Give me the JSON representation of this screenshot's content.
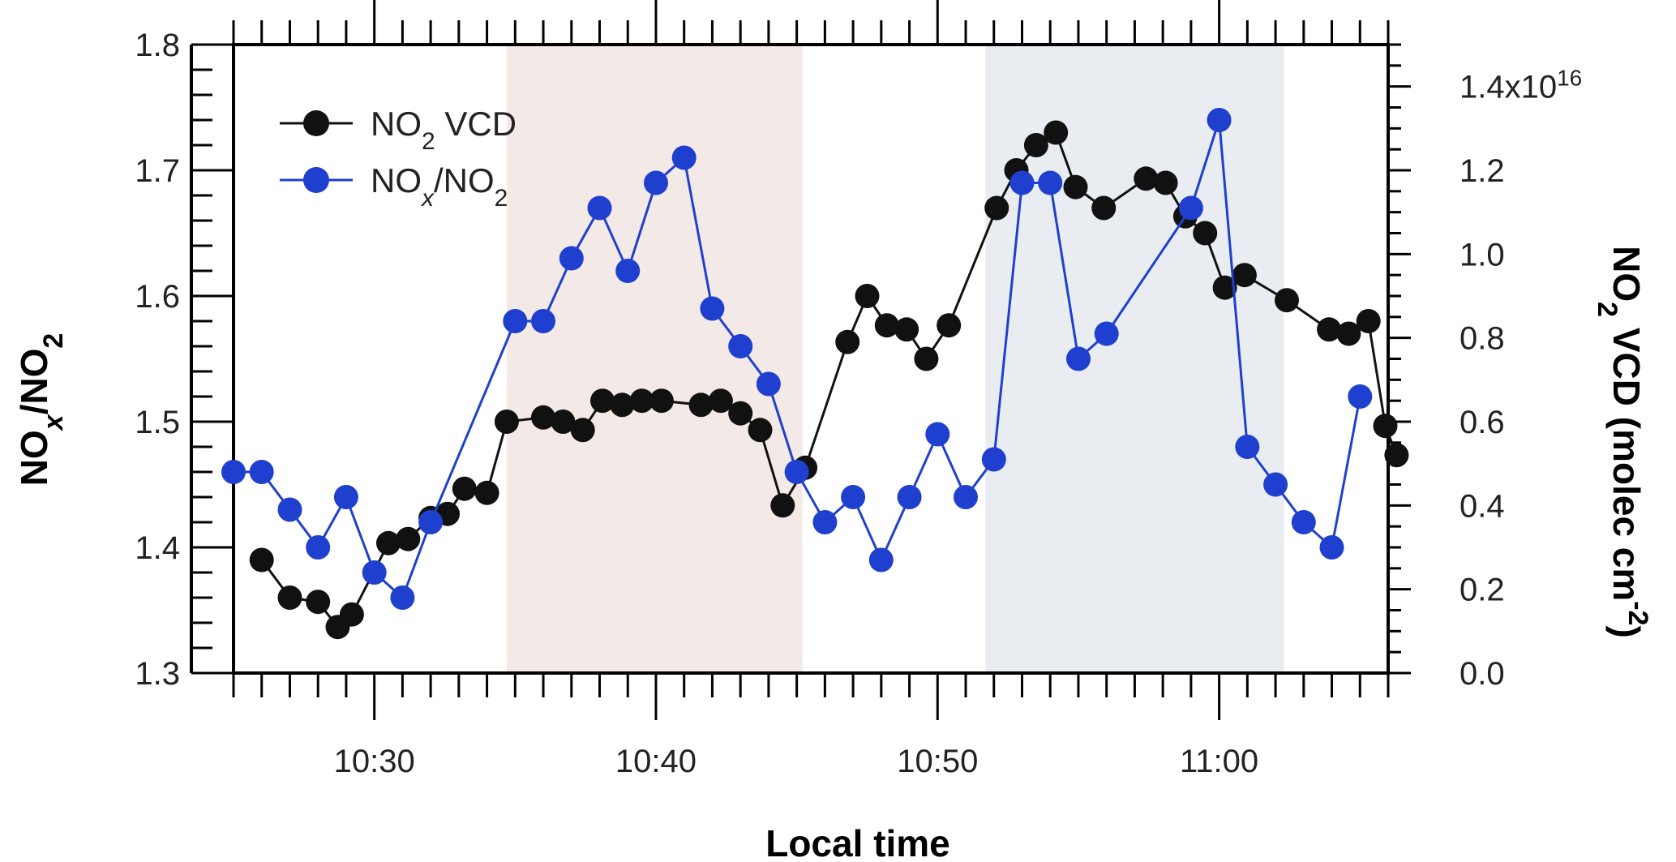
{
  "chart_data": {
    "type": "line",
    "xlabel": "Local time",
    "ylabel_left": {
      "main": "NO",
      "sub1": "x",
      "mid": "/NO",
      "sub2": "2"
    },
    "ylabel_right": {
      "main": "NO",
      "sub": "2",
      "rest": " VCD (molec cm",
      "sup": "-2",
      "close": ")"
    },
    "x_axis": {
      "range_min": [
        10,
        25
      ],
      "range_max": [
        11,
        6
      ],
      "major_tick_labels": [
        "10:30",
        "10:40",
        "10:50",
        "11:00"
      ],
      "major_tick_minutes": [
        30,
        40,
        50,
        60
      ],
      "minor_tick_every_min": 1
    },
    "y_left": {
      "min": 1.3,
      "max": 1.8,
      "ticks": [
        "1.3",
        "1.4",
        "1.5",
        "1.6",
        "1.7",
        "1.8"
      ],
      "minor_step": 0.02
    },
    "y_right": {
      "min": 0.0,
      "max": 1.5,
      "scale": "1e16",
      "ticks": [
        "0.0",
        "0.2",
        "0.4",
        "0.6",
        "0.8",
        "1.0",
        "1.2"
      ],
      "top_label": {
        "base": "1.4x10",
        "exp": "16"
      },
      "minor_step": 0.05
    },
    "shaded_regions": [
      {
        "start_min": 34.7,
        "end_min": 45.2,
        "color": "#f3e9e7"
      },
      {
        "start_min": 51.7,
        "end_min": 62.3,
        "color": "#e9edf2"
      }
    ],
    "legend_position": "top-left",
    "series": [
      {
        "name": {
          "main": "NO",
          "sub": "2",
          "rest": " VCD"
        },
        "axis": "right",
        "color": "#111111",
        "x_min": [
          26,
          27,
          28,
          28.7,
          29.2,
          30.5,
          31.2,
          32,
          32.6,
          33.2,
          34,
          34.7,
          36,
          36.7,
          37.4,
          38.1,
          38.8,
          39.5,
          40.2,
          41.6,
          42.3,
          43,
          43.7,
          44.5,
          45.3,
          46.8,
          47.5,
          48.2,
          48.9,
          49.6,
          50.4,
          52.1,
          52.8,
          53.5,
          54.2,
          54.9,
          55.9,
          57.4,
          58.1,
          58.8,
          59.5,
          60.2,
          60.9,
          62.4,
          63.9,
          64.6,
          65.3,
          65.9,
          66.3
        ],
        "y": [
          0.27,
          0.18,
          0.17,
          0.11,
          0.14,
          0.31,
          0.32,
          0.37,
          0.38,
          0.44,
          0.43,
          0.6,
          0.61,
          0.6,
          0.58,
          0.65,
          0.64,
          0.65,
          0.65,
          0.64,
          0.65,
          0.62,
          0.58,
          0.4,
          0.49,
          0.79,
          0.9,
          0.83,
          0.82,
          0.75,
          0.83,
          1.11,
          1.2,
          1.26,
          1.29,
          1.16,
          1.11,
          1.18,
          1.17,
          1.09,
          1.05,
          0.92,
          0.95,
          0.89,
          0.82,
          0.81,
          0.84,
          0.59,
          0.52
        ]
      },
      {
        "name": {
          "main": "NO",
          "sub": "x",
          "mid": "/NO",
          "sub2": "2"
        },
        "axis": "left",
        "color": "#1f3fce",
        "x_min": [
          25,
          26,
          27,
          28,
          29,
          30,
          31,
          32,
          35,
          36,
          37,
          38,
          39,
          40,
          41,
          42,
          43,
          44,
          45,
          46,
          47,
          48,
          49,
          50,
          51,
          52,
          53,
          54,
          55,
          56,
          59,
          60,
          61,
          62,
          63,
          64,
          65
        ],
        "y": [
          1.46,
          1.46,
          1.43,
          1.4,
          1.44,
          1.38,
          1.36,
          1.42,
          1.58,
          1.58,
          1.63,
          1.67,
          1.62,
          1.69,
          1.71,
          1.59,
          1.56,
          1.53,
          1.46,
          1.42,
          1.44,
          1.39,
          1.44,
          1.49,
          1.44,
          1.47,
          1.69,
          1.69,
          1.55,
          1.57,
          1.67,
          1.74,
          1.48,
          1.45,
          1.42,
          1.4,
          1.52
        ]
      }
    ]
  }
}
